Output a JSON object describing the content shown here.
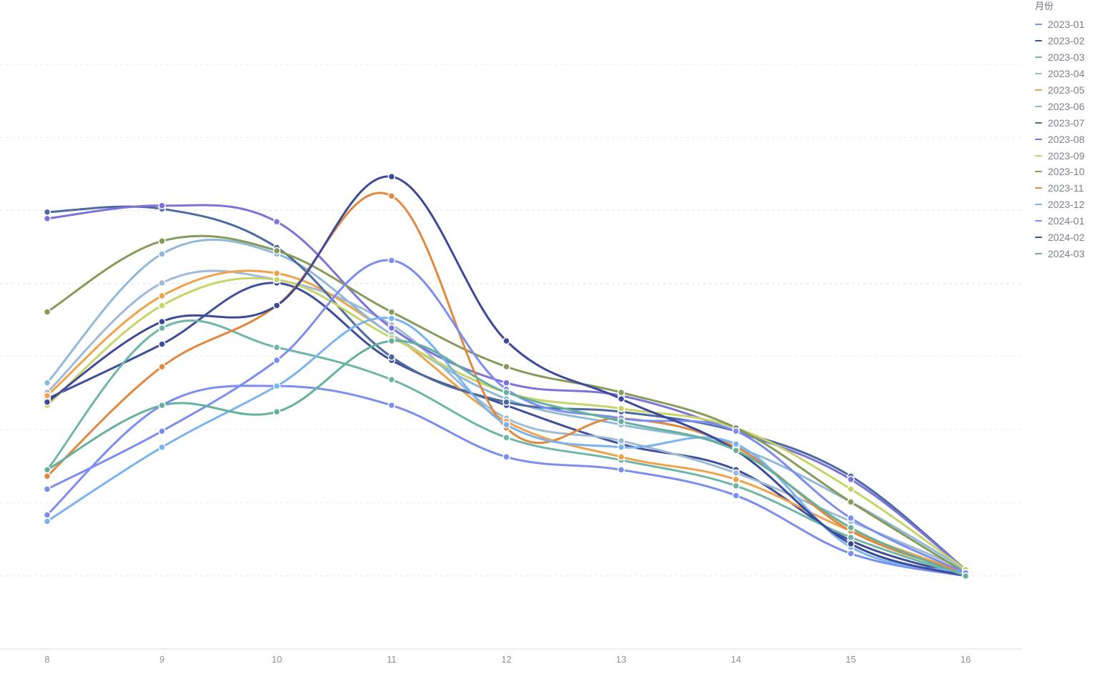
{
  "chart_data": {
    "type": "line",
    "curve": "smooth",
    "x": [
      8,
      9,
      10,
      11,
      12,
      13,
      14,
      15,
      16
    ],
    "yaxis_labels_visible": false,
    "grid": "horizontal-dashed",
    "legend": {
      "title": "月份",
      "placement": "top-right"
    },
    "series": [
      {
        "name": "2023-01",
        "color": "#7b8ef0",
        "values": [
          0.095,
          0.265,
          0.295,
          0.265,
          0.185,
          0.165,
          0.125,
          0.035,
          0.0
        ]
      },
      {
        "name": "2023-02",
        "color": "#3f4e9a",
        "values": [
          0.275,
          0.36,
          0.455,
          0.335,
          0.265,
          0.205,
          0.165,
          0.055,
          0.0
        ]
      },
      {
        "name": "2023-03",
        "color": "#6fb5a8",
        "values": [
          0.165,
          0.385,
          0.355,
          0.305,
          0.215,
          0.18,
          0.14,
          0.06,
          0.0
        ]
      },
      {
        "name": "2023-04",
        "color": "#9dbad6",
        "values": [
          0.285,
          0.455,
          0.46,
          0.39,
          0.245,
          0.21,
          0.16,
          0.085,
          0.01
        ]
      },
      {
        "name": "2023-05",
        "color": "#f0a24a",
        "values": [
          0.28,
          0.435,
          0.47,
          0.375,
          0.24,
          0.185,
          0.15,
          0.07,
          0.005
        ]
      },
      {
        "name": "2023-06",
        "color": "#90b8d8",
        "values": [
          0.3,
          0.5,
          0.5,
          0.375,
          0.275,
          0.235,
          0.2,
          0.115,
          0.01
        ]
      },
      {
        "name": "2023-07",
        "color": "#4a6aa0",
        "values": [
          0.565,
          0.57,
          0.51,
          0.34,
          0.27,
          0.255,
          0.225,
          0.155,
          0.01
        ]
      },
      {
        "name": "2023-08",
        "color": "#7d72d9",
        "values": [
          0.555,
          0.575,
          0.55,
          0.385,
          0.3,
          0.28,
          0.225,
          0.15,
          0.01
        ]
      },
      {
        "name": "2023-09",
        "color": "#c6d469",
        "values": [
          0.265,
          0.42,
          0.46,
          0.37,
          0.285,
          0.26,
          0.23,
          0.135,
          0.01
        ]
      },
      {
        "name": "2023-10",
        "color": "#869a5a",
        "values": [
          0.41,
          0.52,
          0.505,
          0.41,
          0.325,
          0.285,
          0.23,
          0.115,
          0.005
        ]
      },
      {
        "name": "2023-11",
        "color": "#e0883e",
        "values": [
          0.155,
          0.325,
          0.42,
          0.59,
          0.23,
          0.245,
          0.2,
          0.07,
          0.005
        ]
      },
      {
        "name": "2023-12",
        "color": "#7ab4f0",
        "values": [
          0.085,
          0.2,
          0.295,
          0.4,
          0.235,
          0.2,
          0.205,
          0.045,
          0.005
        ]
      },
      {
        "name": "2024-01",
        "color": "#7b8ef0",
        "values": [
          0.135,
          0.225,
          0.335,
          0.49,
          0.29,
          0.245,
          0.225,
          0.09,
          0.005
        ]
      },
      {
        "name": "2024-02",
        "color": "#3a4a98",
        "values": [
          0.27,
          0.395,
          0.42,
          0.62,
          0.365,
          0.275,
          0.195,
          0.05,
          0.0
        ]
      },
      {
        "name": "2024-03",
        "color": "#66b09e",
        "values": [
          0.165,
          0.265,
          0.255,
          0.365,
          0.285,
          0.24,
          0.195,
          0.075,
          0.0
        ]
      }
    ]
  }
}
